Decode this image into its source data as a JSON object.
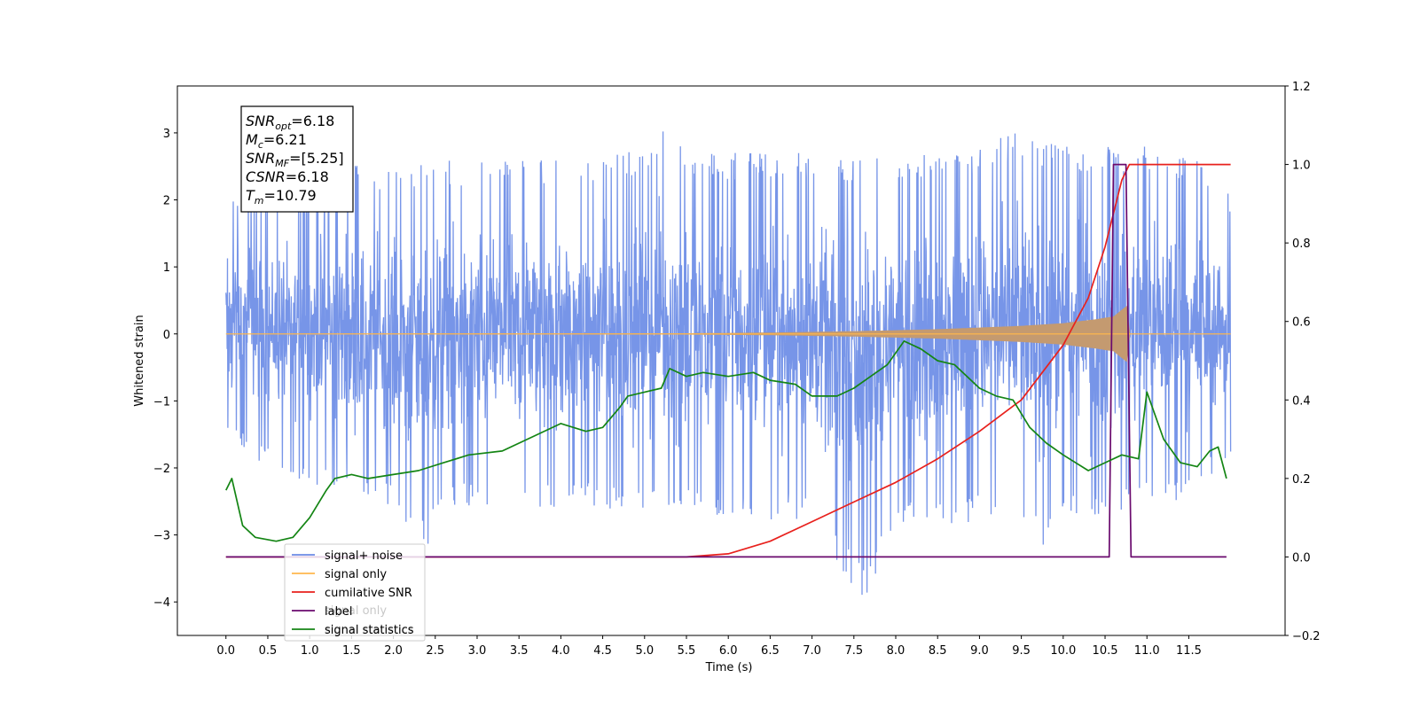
{
  "chart_data": {
    "type": "line",
    "xlabel": "Time (s)",
    "ylabel": "Whitened strain",
    "xlim": [
      -0.58,
      12.65
    ],
    "ylim_left": [
      -4.5,
      3.7
    ],
    "ylim_right": [
      -0.2,
      1.2
    ],
    "xticks": [
      "0.0",
      "0.5",
      "1.0",
      "1.5",
      "2.0",
      "2.5",
      "3.0",
      "3.5",
      "4.0",
      "4.5",
      "5.0",
      "5.5",
      "6.0",
      "6.5",
      "7.0",
      "7.5",
      "8.0",
      "8.5",
      "9.0",
      "9.5",
      "10.0",
      "10.5",
      "11.0",
      "11.5"
    ],
    "yticks_left": [
      "−4",
      "−3",
      "−2",
      "−1",
      "0",
      "1",
      "2",
      "3"
    ],
    "yticks_right": [
      "−0.2",
      "0.0",
      "0.2",
      "0.4",
      "0.6",
      "0.8",
      "1.0",
      "1.2"
    ],
    "grid": false,
    "legend_position": "lower-left",
    "info_box": {
      "lines": [
        {
          "sym": "SNR",
          "sub": "opt",
          "val": "=6.18"
        },
        {
          "sym": "M",
          "sub": "c",
          "val": "=6.21"
        },
        {
          "sym": "SNR",
          "sub": "MF",
          "val": "=[5.25]"
        },
        {
          "sym": "CSNR",
          "sub": "",
          "val": "=6.18"
        },
        {
          "sym": "T",
          "sub": "m",
          "val": "=10.79"
        }
      ]
    },
    "series": [
      {
        "name": "signal+ noise",
        "axis": "left",
        "color": "#6b8ce6",
        "kind": "noise",
        "x_range": [
          0.0,
          12.0
        ],
        "envelope_upper": [
          [
            0.0,
            2.1
          ],
          [
            0.5,
            2.2
          ],
          [
            1.0,
            2.4
          ],
          [
            1.5,
            2.6
          ],
          [
            2.0,
            2.5
          ],
          [
            2.5,
            2.6
          ],
          [
            3.0,
            2.6
          ],
          [
            3.5,
            2.7
          ],
          [
            4.0,
            2.6
          ],
          [
            4.5,
            2.7
          ],
          [
            5.0,
            2.8
          ],
          [
            5.3,
            3.3
          ],
          [
            5.5,
            2.8
          ],
          [
            6.0,
            2.7
          ],
          [
            6.5,
            2.7
          ],
          [
            7.0,
            2.7
          ],
          [
            7.5,
            2.6
          ],
          [
            8.0,
            2.7
          ],
          [
            8.5,
            2.7
          ],
          [
            9.0,
            2.8
          ],
          [
            9.5,
            3.1
          ],
          [
            10.0,
            2.8
          ],
          [
            10.5,
            2.8
          ],
          [
            11.0,
            2.8
          ],
          [
            11.5,
            2.7
          ],
          [
            12.0,
            2.1
          ]
        ],
        "envelope_lower": [
          [
            0.0,
            -1.5
          ],
          [
            0.5,
            -2.0
          ],
          [
            1.0,
            -2.3
          ],
          [
            1.5,
            -2.5
          ],
          [
            2.0,
            -2.6
          ],
          [
            2.4,
            -3.3
          ],
          [
            2.5,
            -2.6
          ],
          [
            3.0,
            -2.6
          ],
          [
            3.5,
            -2.6
          ],
          [
            4.0,
            -2.6
          ],
          [
            4.5,
            -2.6
          ],
          [
            5.0,
            -2.7
          ],
          [
            5.5,
            -2.7
          ],
          [
            6.0,
            -2.7
          ],
          [
            6.5,
            -2.8
          ],
          [
            7.0,
            -2.8
          ],
          [
            7.6,
            -4.1
          ],
          [
            8.0,
            -2.8
          ],
          [
            8.5,
            -2.9
          ],
          [
            9.0,
            -2.8
          ],
          [
            9.5,
            -3.0
          ],
          [
            9.8,
            -3.3
          ],
          [
            10.0,
            -2.8
          ],
          [
            10.5,
            -2.7
          ],
          [
            11.0,
            -2.6
          ],
          [
            11.5,
            -2.5
          ],
          [
            12.0,
            -1.8
          ]
        ]
      },
      {
        "name": "signal only",
        "axis": "left",
        "color": "#ffb74d",
        "fill": "#c49a70",
        "kind": "chirp",
        "envelope": [
          [
            0.0,
            0.0
          ],
          [
            5.5,
            0.01
          ],
          [
            6.5,
            0.02
          ],
          [
            7.5,
            0.04
          ],
          [
            8.5,
            0.07
          ],
          [
            9.5,
            0.12
          ],
          [
            10.0,
            0.16
          ],
          [
            10.4,
            0.22
          ],
          [
            10.6,
            0.26
          ],
          [
            10.79,
            0.45
          ],
          [
            10.8,
            0.0
          ],
          [
            12.0,
            0.0
          ]
        ]
      },
      {
        "name": "cumilative SNR",
        "axis": "right",
        "color": "#e8211d",
        "points": [
          [
            0.0,
            0.0
          ],
          [
            5.5,
            0.0
          ],
          [
            6.0,
            0.008
          ],
          [
            6.5,
            0.04
          ],
          [
            7.0,
            0.09
          ],
          [
            7.5,
            0.14
          ],
          [
            8.0,
            0.19
          ],
          [
            8.5,
            0.25
          ],
          [
            9.0,
            0.32
          ],
          [
            9.5,
            0.4
          ],
          [
            10.0,
            0.54
          ],
          [
            10.3,
            0.66
          ],
          [
            10.5,
            0.79
          ],
          [
            10.7,
            0.96
          ],
          [
            10.79,
            1.0
          ],
          [
            12.0,
            1.0
          ]
        ]
      },
      {
        "name": "label",
        "axis": "right",
        "color": "#6a0a6e",
        "points": [
          [
            0.0,
            0.0
          ],
          [
            10.55,
            0.0
          ],
          [
            10.6,
            1.0
          ],
          [
            10.75,
            1.0
          ],
          [
            10.81,
            0.0
          ],
          [
            11.95,
            0.0
          ]
        ]
      },
      {
        "name": "signal statistics",
        "axis": "right",
        "color": "#148514",
        "points": [
          [
            0.0,
            0.17
          ],
          [
            0.07,
            0.2
          ],
          [
            0.2,
            0.08
          ],
          [
            0.35,
            0.05
          ],
          [
            0.6,
            0.04
          ],
          [
            0.8,
            0.05
          ],
          [
            1.0,
            0.1
          ],
          [
            1.2,
            0.17
          ],
          [
            1.3,
            0.2
          ],
          [
            1.5,
            0.21
          ],
          [
            1.7,
            0.2
          ],
          [
            2.0,
            0.21
          ],
          [
            2.3,
            0.22
          ],
          [
            2.6,
            0.24
          ],
          [
            2.9,
            0.26
          ],
          [
            3.3,
            0.27
          ],
          [
            3.6,
            0.3
          ],
          [
            4.0,
            0.34
          ],
          [
            4.3,
            0.32
          ],
          [
            4.5,
            0.33
          ],
          [
            4.7,
            0.38
          ],
          [
            4.8,
            0.41
          ],
          [
            5.0,
            0.42
          ],
          [
            5.2,
            0.43
          ],
          [
            5.3,
            0.48
          ],
          [
            5.5,
            0.46
          ],
          [
            5.7,
            0.47
          ],
          [
            6.0,
            0.46
          ],
          [
            6.3,
            0.47
          ],
          [
            6.5,
            0.45
          ],
          [
            6.8,
            0.44
          ],
          [
            7.0,
            0.41
          ],
          [
            7.3,
            0.41
          ],
          [
            7.5,
            0.43
          ],
          [
            7.7,
            0.46
          ],
          [
            7.9,
            0.49
          ],
          [
            8.1,
            0.55
          ],
          [
            8.3,
            0.53
          ],
          [
            8.5,
            0.5
          ],
          [
            8.7,
            0.49
          ],
          [
            9.0,
            0.43
          ],
          [
            9.2,
            0.41
          ],
          [
            9.4,
            0.4
          ],
          [
            9.6,
            0.33
          ],
          [
            9.8,
            0.29
          ],
          [
            10.0,
            0.26
          ],
          [
            10.3,
            0.22
          ],
          [
            10.5,
            0.24
          ],
          [
            10.7,
            0.26
          ],
          [
            10.9,
            0.25
          ],
          [
            11.0,
            0.42
          ],
          [
            11.2,
            0.3
          ],
          [
            11.4,
            0.24
          ],
          [
            11.6,
            0.23
          ],
          [
            11.75,
            0.27
          ],
          [
            11.85,
            0.28
          ],
          [
            11.95,
            0.2
          ]
        ]
      }
    ],
    "legend": [
      {
        "label": "signal+ noise",
        "color": "#6b8ce6"
      },
      {
        "label": "signal only",
        "color": "#ffb74d"
      },
      {
        "label": "cumilative SNR",
        "color": "#e8211d"
      },
      {
        "label": "label",
        "color": "#6a0a6e"
      },
      {
        "label": "signal statistics",
        "color": "#148514"
      }
    ],
    "legend_ghost_labels": [
      "signal only",
      "signal statistics"
    ]
  }
}
